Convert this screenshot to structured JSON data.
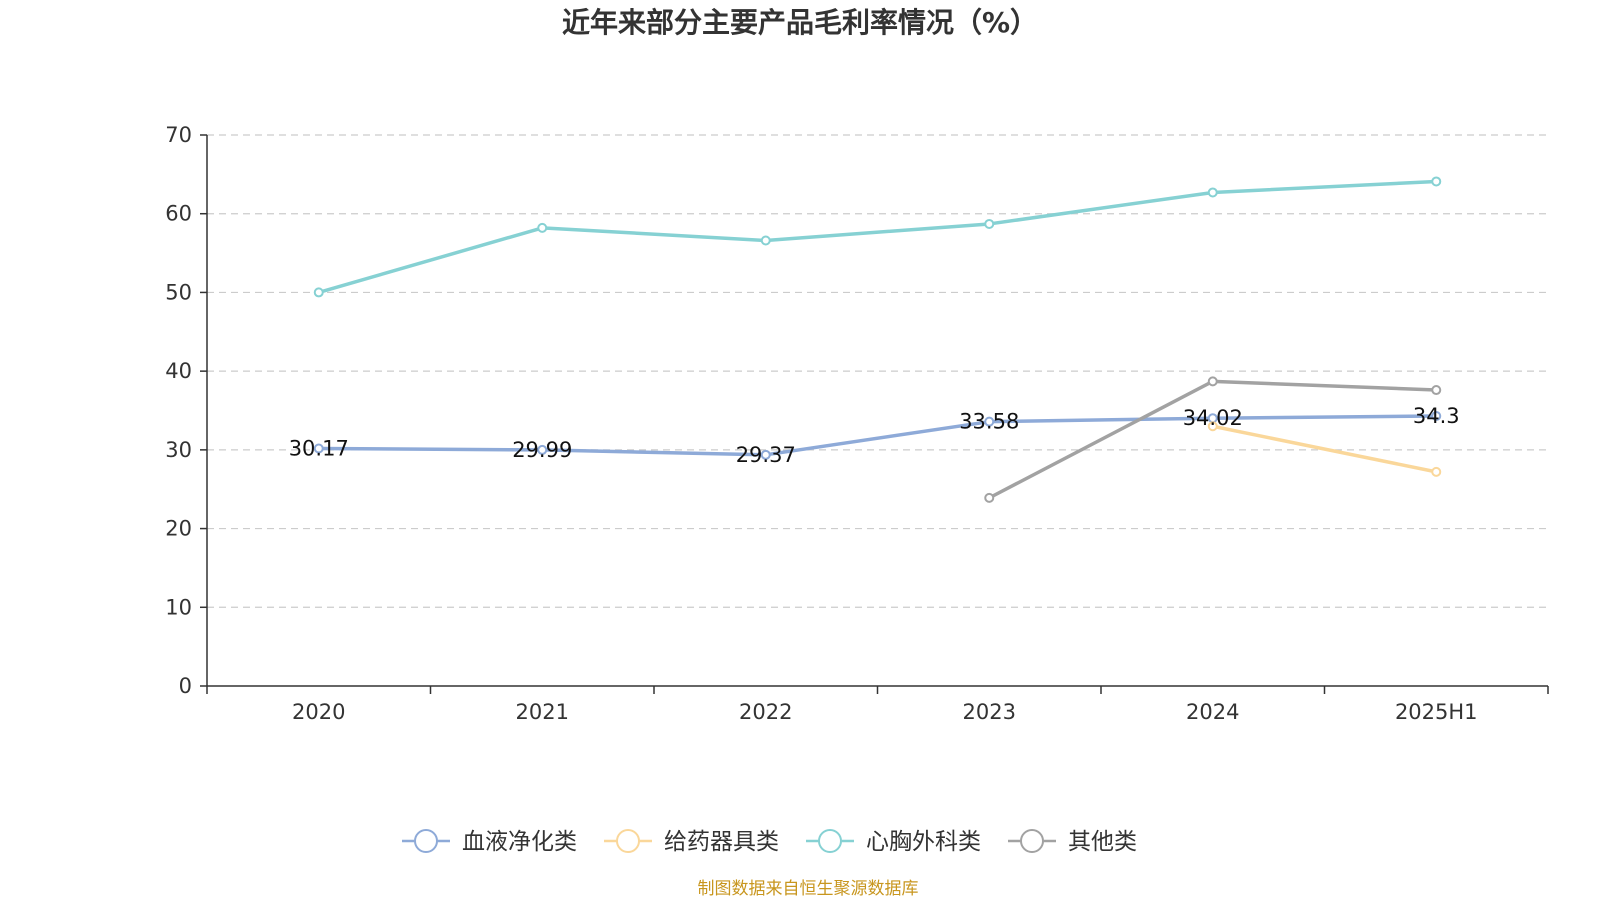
{
  "chart_data": {
    "type": "line",
    "title": "近年来部分主要产品毛利率情况（%）",
    "categories": [
      "2020",
      "2021",
      "2022",
      "2023",
      "2024",
      "2025H1"
    ],
    "ylim": [
      0,
      70
    ],
    "yticks": [
      0,
      10,
      20,
      30,
      40,
      50,
      60,
      70
    ],
    "grid": true,
    "legend_position": "bottom",
    "series": [
      {
        "name": "血液净化类",
        "color": "#8eaad8",
        "values": [
          30.17,
          29.99,
          29.37,
          33.58,
          34.02,
          34.3
        ],
        "labels": [
          "30.17",
          "29.99",
          "29.37",
          "33.58",
          "34.02",
          "34.3"
        ]
      },
      {
        "name": "给药器具类",
        "color": "#fad79a",
        "values": [
          null,
          null,
          null,
          null,
          33.0,
          27.2
        ],
        "labels": []
      },
      {
        "name": "心胸外科类",
        "color": "#86d1d3",
        "values": [
          50.0,
          58.2,
          56.6,
          58.7,
          62.7,
          64.1
        ],
        "labels": []
      },
      {
        "name": "其他类",
        "color": "#a2a2a2",
        "values": [
          null,
          null,
          null,
          23.9,
          38.7,
          37.6
        ],
        "labels": []
      }
    ]
  },
  "source": "制图数据来自恒生聚源数据库"
}
